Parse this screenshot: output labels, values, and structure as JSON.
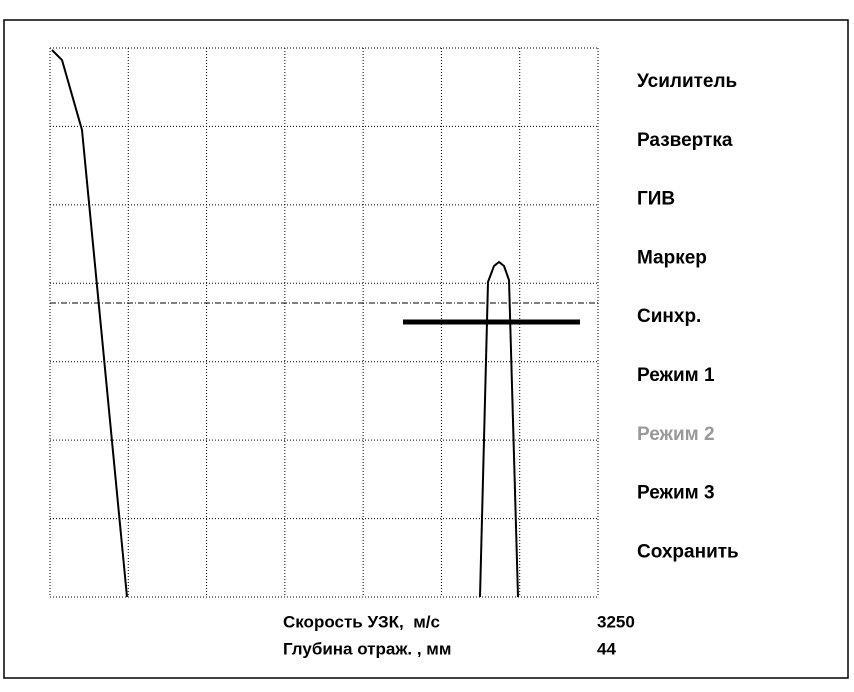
{
  "menu": [
    {
      "label": "Усилитель",
      "enabled": true
    },
    {
      "label": "Развертка",
      "enabled": true
    },
    {
      "label": "ГИВ",
      "enabled": true
    },
    {
      "label": "Маркер",
      "enabled": true
    },
    {
      "label": "Синхр.",
      "enabled": true
    },
    {
      "label": "Режим 1",
      "enabled": true
    },
    {
      "label": "Режим 2",
      "enabled": false
    },
    {
      "label": "Режим 3",
      "enabled": true
    },
    {
      "label": "Сохранить",
      "enabled": true
    }
  ],
  "status": [
    {
      "label": "Скорость УЗК,  м/с",
      "value": 3250
    },
    {
      "label": "Глубина отраж. , мм",
      "value": 44
    }
  ]
}
